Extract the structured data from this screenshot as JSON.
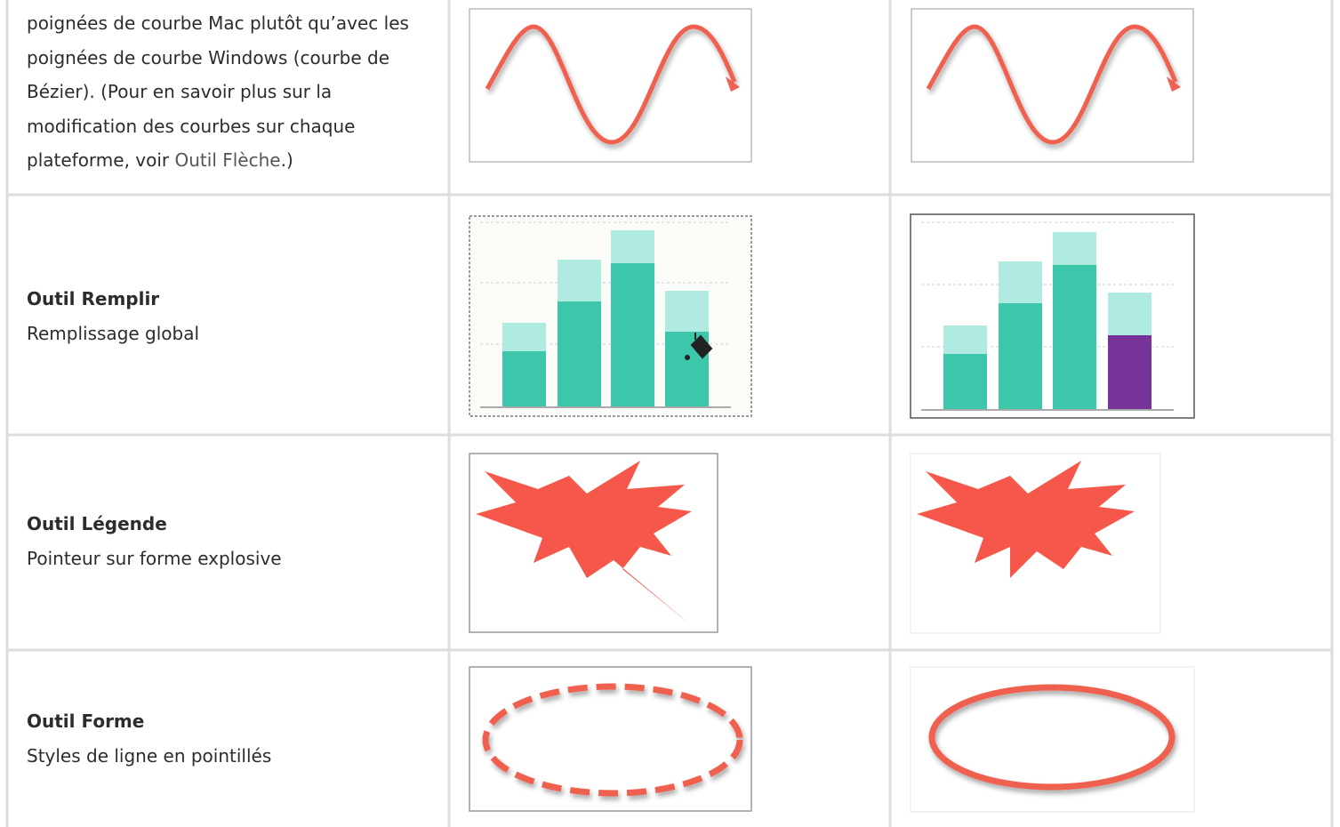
{
  "table": {
    "rows": [
      {
        "text": "poignées de courbe Mac plutôt qu’avec les poignées de courbe Windows (courbe de Bézier). (Pour en savoir plus sur la modification des courbes sur chaque plateforme, voir ",
        "link": "Outil Flèche",
        "after": ".)"
      },
      {
        "title": "Outil Remplir",
        "subtitle": "Remplissage global"
      },
      {
        "title": "Outil Légende",
        "subtitle": "Pointeur sur forme explosive"
      },
      {
        "title": "Outil Forme",
        "subtitle": "Styles de ligne en pointillés"
      }
    ]
  }
}
